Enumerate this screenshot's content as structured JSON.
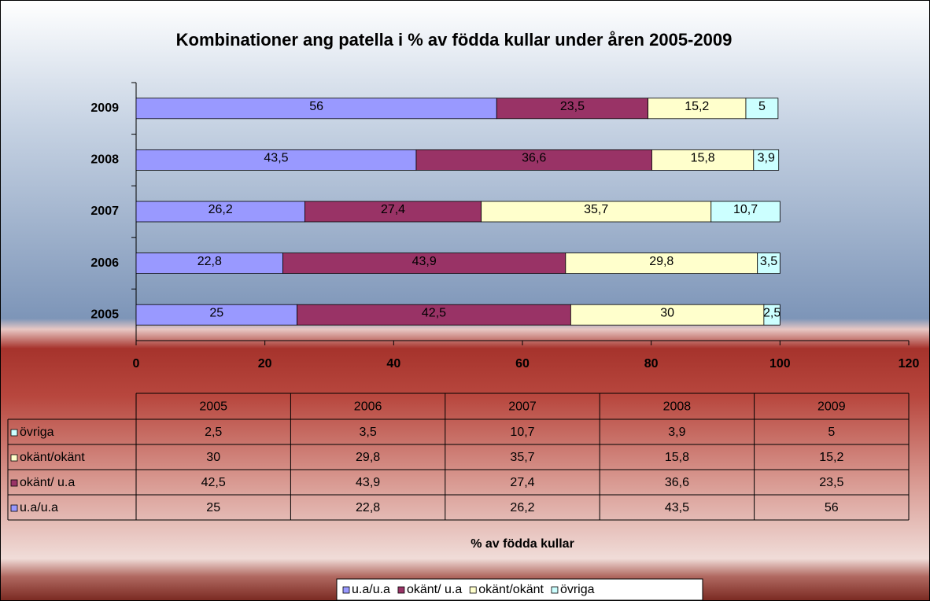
{
  "chart_data": {
    "type": "stacked_bar_horizontal",
    "title": "Kombinationer ang patella i % av födda kullar under åren 2005-2009",
    "x_label": "% av födda kullar",
    "categories": [
      "2005",
      "2006",
      "2007",
      "2008",
      "2009"
    ],
    "series": [
      {
        "name": "u.a/u.a",
        "color": "#9999ff",
        "values": [
          25,
          22.8,
          26.2,
          43.5,
          56
        ],
        "value_labels": [
          "25",
          "22,8",
          "26,2",
          "43,5",
          "56"
        ]
      },
      {
        "name": "okänt/ u.a",
        "color": "#993366",
        "values": [
          42.5,
          43.9,
          27.4,
          36.6,
          23.5
        ],
        "value_labels": [
          "42,5",
          "43,9",
          "27,4",
          "36,6",
          "23,5"
        ]
      },
      {
        "name": "okänt/okänt",
        "color": "#ffffcc",
        "values": [
          30,
          29.8,
          35.7,
          15.8,
          15.2
        ],
        "value_labels": [
          "30",
          "29,8",
          "35,7",
          "15,8",
          "15,2"
        ]
      },
      {
        "name": "övriga",
        "color": "#ccffff",
        "values": [
          2.5,
          3.5,
          10.7,
          3.9,
          5
        ],
        "value_labels": [
          "2,5",
          "3,5",
          "10,7",
          "3,9",
          "5"
        ]
      }
    ],
    "xlim": [
      0,
      120
    ],
    "xticks": [
      0,
      20,
      40,
      60,
      80,
      100,
      120
    ],
    "legend": "bottom",
    "data_table": true
  }
}
